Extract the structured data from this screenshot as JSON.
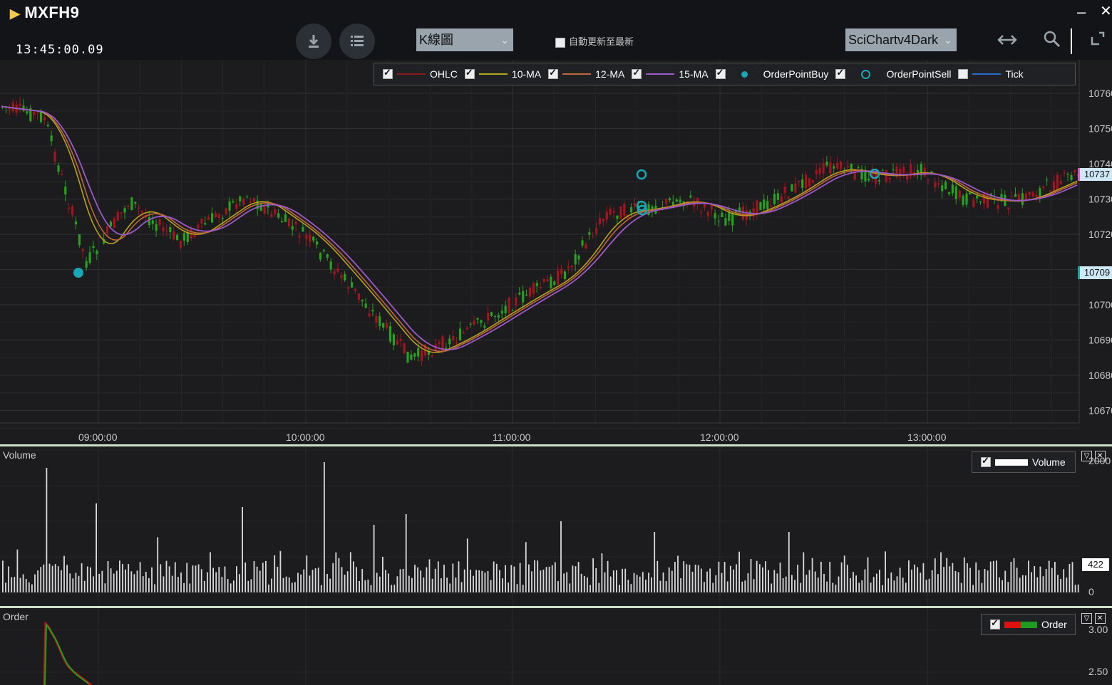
{
  "window": {
    "symbol": "MXFH9",
    "clock": "13:45:00.09",
    "minimize_glyph": "–",
    "close_glyph": "✕"
  },
  "toolbar": {
    "download_icon": "download-icon",
    "list_icon": "list-icon",
    "chart_type_value": "K線圖",
    "auto_update_label": "自動更新至最新",
    "auto_update_checked": false,
    "theme_value": "SciChartv4Dark",
    "pan_icon": "horizontal-arrows-icon",
    "zoom_icon": "search-icon",
    "fit_icon": "fit-screen-icon"
  },
  "main_legend": [
    {
      "label": "OHLC",
      "color": "#8b1a1a",
      "checked": true,
      "marker": "line"
    },
    {
      "label": "10-MA",
      "color": "#b5a21e",
      "checked": true,
      "marker": "line"
    },
    {
      "label": "12-MA",
      "color": "#c0663a",
      "checked": true,
      "marker": "line"
    },
    {
      "label": "15-MA",
      "color": "#9b59c9",
      "checked": true,
      "marker": "line"
    },
    {
      "label": "OrderPointBuy",
      "color": "#1aa7b5",
      "checked": true,
      "marker": "dot"
    },
    {
      "label": "OrderPointSell",
      "color": "#1aa7b5",
      "checked": true,
      "marker": "circle"
    },
    {
      "label": "Tick",
      "color": "#2a6bd1",
      "checked": false,
      "marker": "line"
    }
  ],
  "price_axis": {
    "ticks": [
      "10760",
      "10750",
      "10740",
      "10730",
      "10720",
      "10710",
      "10700",
      "10690",
      "10680",
      "10670"
    ],
    "marker_top": "10737",
    "marker_bottom": "10709",
    "marker_top_color": "#d65fd0",
    "marker_bottom_color": "#1aa7b5"
  },
  "time_axis": [
    "09:00:00",
    "10:00:00",
    "11:00:00",
    "12:00:00",
    "13:00:00"
  ],
  "volume_pane": {
    "title": "Volume",
    "legend_label": "Volume",
    "legend_checked": true,
    "axis_top": "2000",
    "axis_bottom": "0",
    "current_value": "422"
  },
  "order_pane": {
    "title": "Order",
    "legend_label": "Order",
    "legend_checked": true,
    "axis_top": "3.00",
    "axis_mid": "2.50"
  },
  "colors": {
    "up": "#a3141e",
    "down": "#27a11f",
    "background": "#1c1c1e",
    "grid": "#2c2c2e"
  }
}
